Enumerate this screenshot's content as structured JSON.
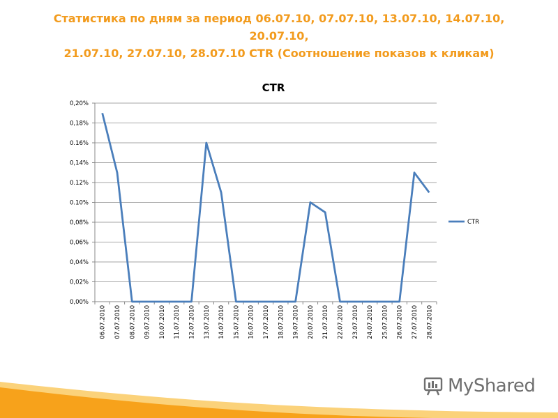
{
  "page": {
    "title_line1": "Статистика по дням за период 06.07.10, 07.07.10, 13.07.10, 14.07.10, 20.07.10,",
    "title_line2": "21.07.10, 27.07.10, 28.07.10 CTR (Соотношение показов к кликам)"
  },
  "brand": {
    "text": "MyShared",
    "icon": "presentation-board-icon"
  },
  "colors": {
    "title": "#f29b1d",
    "series": "#4a7ebb",
    "footer_orange": "#f7a21b",
    "footer_light": "#fbd27a"
  },
  "chart_data": {
    "type": "line",
    "title": "CTR",
    "xlabel": "",
    "ylabel": "",
    "ylim": [
      0,
      0.2
    ],
    "grid": true,
    "legend": "right",
    "y_ticks": [
      "0,00%",
      "0,02%",
      "0,04%",
      "0,06%",
      "0,08%",
      "0.10%",
      "0.12%",
      "0,14%",
      "0.16%",
      "0,18%",
      "0,20%"
    ],
    "categories": [
      "06.07.2010",
      "07.07.2010",
      "08.07.2010",
      "09.07.2010",
      "10.07.2010",
      "11.07.2010",
      "12.07.2010",
      "13.07.2010",
      "14.07.2010",
      "15.07.2010",
      "16.07.2010",
      "17.07.2010",
      "18.07.2010",
      "19.07.2010",
      "20.07.2010",
      "21.07.2010",
      "22.07.2010",
      "23.07.2010",
      "24.07.2010",
      "25.07.2010",
      "26.07.2010",
      "27.07.2010",
      "28.07.2010"
    ],
    "series": [
      {
        "name": "CTR",
        "values": [
          0.19,
          0.13,
          0,
          0,
          0,
          0,
          0,
          0.16,
          0.11,
          0,
          0,
          0,
          0,
          0,
          0.1,
          0.09,
          0,
          0,
          0,
          0,
          0,
          0.13,
          0.11
        ]
      }
    ]
  }
}
